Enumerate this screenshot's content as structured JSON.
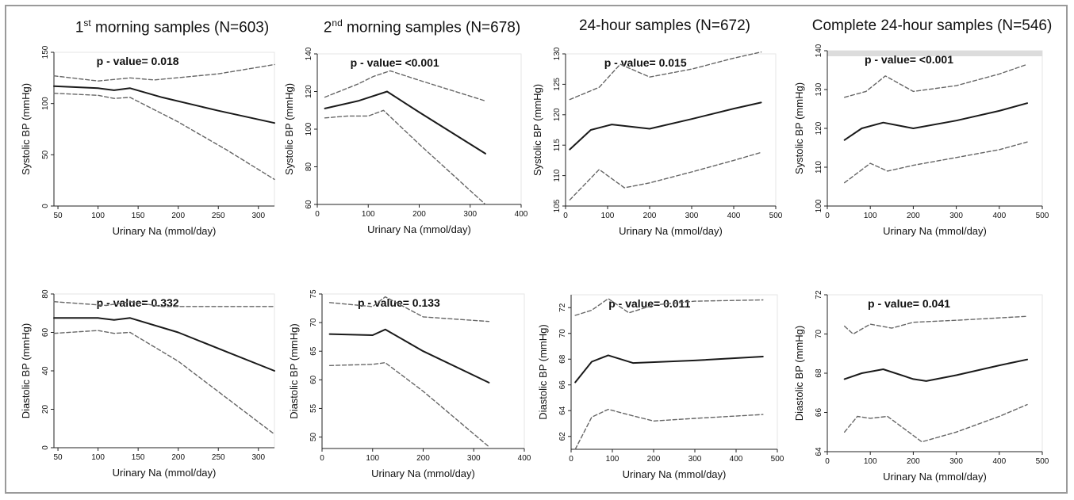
{
  "titles": {
    "c1": {
      "pre": "1",
      "sup": "st",
      "post": " morning samples (N=603)"
    },
    "c2": {
      "pre": "2",
      "sup": "nd",
      "post": " morning samples (N=678)"
    },
    "c3": {
      "pre": "24-hour samples (N=672)",
      "sup": "",
      "post": ""
    },
    "c4": {
      "pre": "Complete 24-hour samples (N=546)",
      "sup": "",
      "post": ""
    }
  },
  "colors": {
    "line": "#1a1a1a",
    "ci": "#666666",
    "frame": "#9a9a9a",
    "axis": "#222222",
    "highlight_bar": "#dcdcdc"
  },
  "chart_data": [
    {
      "type": "line",
      "xlabel": "Urinary Na (mmol/day)",
      "ylabel": "Systolic BP (mmHg)",
      "xlim": [
        45,
        320
      ],
      "ylim": [
        0,
        150
      ],
      "xticks": [
        50,
        100,
        150,
        200,
        250,
        300
      ],
      "yticks": [
        0,
        50,
        100,
        150
      ],
      "annotation": "p - value= 0.018",
      "series": [
        {
          "role": "estimate",
          "x": [
            45,
            100,
            120,
            140,
            180,
            250,
            320
          ],
          "y": [
            117,
            115,
            113,
            115,
            106,
            93,
            81
          ]
        },
        {
          "role": "upper",
          "x": [
            45,
            100,
            140,
            170,
            250,
            320
          ],
          "y": [
            127,
            122,
            125,
            123,
            129,
            138
          ]
        },
        {
          "role": "lower",
          "x": [
            45,
            100,
            120,
            140,
            200,
            260,
            320
          ],
          "y": [
            110,
            108,
            105,
            106,
            82,
            55,
            26
          ]
        }
      ]
    },
    {
      "type": "line",
      "xlabel": "Urinary Na (mmol/day)",
      "ylabel": "Systolic BP (mmHg)",
      "xlim": [
        0,
        400
      ],
      "ylim": [
        60,
        140
      ],
      "xticks": [
        0,
        100,
        200,
        300,
        400
      ],
      "yticks": [
        60,
        80,
        100,
        120,
        140
      ],
      "annotation": "p - value= <0.001",
      "series": [
        {
          "role": "estimate",
          "x": [
            15,
            80,
            137,
            200,
            330
          ],
          "y": [
            111,
            115,
            120,
            109,
            87
          ]
        },
        {
          "role": "upper",
          "x": [
            15,
            80,
            110,
            143,
            200,
            330
          ],
          "y": [
            117,
            124,
            128,
            131,
            126,
            115
          ]
        },
        {
          "role": "lower",
          "x": [
            15,
            60,
            100,
            130,
            200,
            330
          ],
          "y": [
            106,
            107,
            107,
            110,
            92,
            60
          ]
        }
      ]
    },
    {
      "type": "line",
      "xlabel": "Urinary Na (mmol/day)",
      "ylabel": "Systolic BP (mmHg)",
      "xlim": [
        0,
        500
      ],
      "ylim": [
        105,
        130
      ],
      "xticks": [
        0,
        100,
        200,
        300,
        400,
        500
      ],
      "yticks": [
        105,
        110,
        115,
        120,
        125,
        130
      ],
      "annotation": "p - value= 0.015",
      "series": [
        {
          "role": "estimate",
          "x": [
            10,
            60,
            110,
            200,
            300,
            400,
            465
          ],
          "y": [
            114.3,
            117.5,
            118.4,
            117.7,
            119.3,
            121,
            122
          ]
        },
        {
          "role": "upper",
          "x": [
            10,
            80,
            130,
            200,
            300,
            400,
            465
          ],
          "y": [
            122.5,
            124.5,
            128.3,
            126.2,
            127.5,
            129.3,
            130.3
          ]
        },
        {
          "role": "lower",
          "x": [
            10,
            80,
            140,
            200,
            300,
            400,
            465
          ],
          "y": [
            106,
            111,
            108,
            108.8,
            110.6,
            112.5,
            113.8
          ]
        }
      ]
    },
    {
      "type": "line",
      "xlabel": "Urinary Na (mmol/day)",
      "ylabel": "Systolic BP (mmHg)",
      "xlim": [
        0,
        500
      ],
      "ylim": [
        100,
        140
      ],
      "xticks": [
        0,
        100,
        200,
        300,
        400,
        500
      ],
      "yticks": [
        100,
        110,
        120,
        130,
        140
      ],
      "annotation": "p - value= <0.001",
      "series": [
        {
          "role": "estimate",
          "x": [
            40,
            80,
            130,
            200,
            300,
            400,
            465
          ],
          "y": [
            117,
            120,
            121.5,
            120,
            122,
            124.5,
            126.5
          ]
        },
        {
          "role": "upper",
          "x": [
            40,
            90,
            135,
            200,
            300,
            400,
            465
          ],
          "y": [
            128,
            129.5,
            133.5,
            129.5,
            131,
            134,
            136.5
          ]
        },
        {
          "role": "lower",
          "x": [
            40,
            100,
            140,
            200,
            300,
            400,
            465
          ],
          "y": [
            106,
            111,
            109,
            110.5,
            112.5,
            114.5,
            116.5
          ]
        }
      ]
    },
    {
      "type": "line",
      "xlabel": "Urinary Na (mmol/day)",
      "ylabel": "Diastolic BP (mmHg)",
      "xlim": [
        45,
        320
      ],
      "ylim": [
        0,
        80
      ],
      "xticks": [
        50,
        100,
        150,
        200,
        250,
        300
      ],
      "yticks": [
        0,
        20,
        40,
        60,
        80
      ],
      "annotation": "p - value= 0.332",
      "series": [
        {
          "role": "estimate",
          "x": [
            45,
            100,
            120,
            140,
            200,
            260,
            320
          ],
          "y": [
            67.5,
            67.5,
            66.5,
            67.5,
            60,
            50,
            40
          ]
        },
        {
          "role": "upper",
          "x": [
            45,
            110,
            140,
            180,
            250,
            320
          ],
          "y": [
            76,
            74,
            76,
            73.5,
            73.5,
            73.5
          ]
        },
        {
          "role": "lower",
          "x": [
            45,
            100,
            120,
            140,
            200,
            260,
            320
          ],
          "y": [
            59.5,
            61,
            59.5,
            60,
            45,
            26,
            7
          ]
        }
      ]
    },
    {
      "type": "line",
      "xlabel": "Urinary Na (mmol/day)",
      "ylabel": "Diastolic BP (mmHg)",
      "xlim": [
        0,
        400
      ],
      "ylim": [
        48,
        75
      ],
      "xticks": [
        0,
        100,
        200,
        300,
        400
      ],
      "yticks": [
        50,
        55,
        60,
        65,
        70,
        75
      ],
      "annotation": "p - value= 0.133",
      "series": [
        {
          "role": "estimate",
          "x": [
            15,
            100,
            125,
            200,
            330
          ],
          "y": [
            68,
            67.8,
            68.8,
            65,
            59.5
          ]
        },
        {
          "role": "upper",
          "x": [
            15,
            100,
            125,
            200,
            330
          ],
          "y": [
            73.5,
            72.8,
            74.5,
            71,
            70.2
          ]
        },
        {
          "role": "lower",
          "x": [
            15,
            100,
            125,
            200,
            330
          ],
          "y": [
            62.5,
            62.7,
            63,
            58,
            48.3
          ]
        }
      ]
    },
    {
      "type": "line",
      "xlabel": "Urinary Na (mmol/day)",
      "ylabel": "Diastolic BP (mmHg)",
      "xlim": [
        0,
        500
      ],
      "ylim": [
        61,
        73
      ],
      "xticks": [
        0,
        100,
        200,
        300,
        400,
        500
      ],
      "yticks": [
        62,
        64,
        66,
        68,
        70,
        72
      ],
      "annotation": "p - value= 0.011",
      "series": [
        {
          "role": "estimate",
          "x": [
            10,
            50,
            90,
            150,
            300,
            465
          ],
          "y": [
            66.2,
            67.8,
            68.3,
            67.7,
            67.9,
            68.2
          ]
        },
        {
          "role": "upper",
          "x": [
            10,
            50,
            90,
            140,
            200,
            300,
            465
          ],
          "y": [
            71.4,
            71.8,
            72.7,
            71.6,
            72.2,
            72.5,
            72.6
          ]
        },
        {
          "role": "lower",
          "x": [
            10,
            50,
            90,
            150,
            200,
            300,
            465
          ],
          "y": [
            61,
            63.5,
            64.1,
            63.6,
            63.2,
            63.4,
            63.7
          ]
        }
      ]
    },
    {
      "type": "line",
      "xlabel": "Urinary Na (mmol/day)",
      "ylabel": "Diastolic BP (mmHg)",
      "xlim": [
        0,
        500
      ],
      "ylim": [
        64,
        72
      ],
      "xticks": [
        0,
        100,
        200,
        300,
        400,
        500
      ],
      "yticks": [
        64,
        66,
        68,
        70,
        72
      ],
      "annotation": "p - value= 0.041",
      "series": [
        {
          "role": "estimate",
          "x": [
            40,
            80,
            130,
            200,
            230,
            300,
            400,
            465
          ],
          "y": [
            67.7,
            68,
            68.2,
            67.7,
            67.6,
            67.9,
            68.4,
            68.7
          ]
        },
        {
          "role": "upper",
          "x": [
            40,
            60,
            100,
            150,
            200,
            300,
            465
          ],
          "y": [
            70.4,
            70,
            70.5,
            70.3,
            70.6,
            70.7,
            70.9
          ]
        },
        {
          "role": "lower",
          "x": [
            40,
            70,
            100,
            140,
            220,
            300,
            400,
            465
          ],
          "y": [
            65,
            65.8,
            65.7,
            65.8,
            64.5,
            65,
            65.8,
            66.4
          ]
        }
      ]
    }
  ]
}
